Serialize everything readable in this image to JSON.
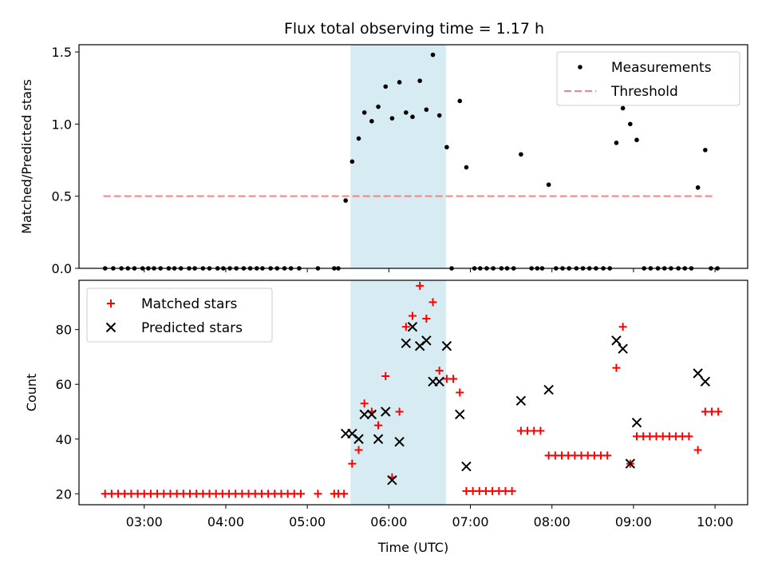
{
  "title": "Flux total observing time = 1.17 h",
  "colors": {
    "measurement": "#000000",
    "threshold": "#ff7f7f",
    "matched": "#ff0000",
    "predicted": "#000000",
    "highlight": "#add8e6"
  },
  "chart_data": [
    {
      "type": "scatter",
      "panel": "top",
      "title": "Flux total observing time = 1.17 h",
      "xlabel": "",
      "ylabel": "Matched/Predicted stars",
      "x_unit": "hours UTC",
      "xlim": [
        2.2,
        10.4
      ],
      "ylim": [
        0,
        1.55
      ],
      "yticks": [
        0.0,
        0.5,
        1.0,
        1.5
      ],
      "ytick_labels": [
        "0.0",
        "0.5",
        "1.0",
        "1.5"
      ],
      "highlight_span": [
        5.53,
        6.7
      ],
      "legend": {
        "position": "upper right",
        "entries": [
          "Measurements",
          "Threshold"
        ]
      },
      "series": [
        {
          "name": "Measurements",
          "marker": "dot",
          "points": [
            [
              2.52,
              0
            ],
            [
              2.62,
              0
            ],
            [
              2.72,
              0
            ],
            [
              2.8,
              0
            ],
            [
              2.88,
              0
            ],
            [
              2.98,
              0
            ],
            [
              3.05,
              0
            ],
            [
              3.12,
              0
            ],
            [
              3.2,
              0
            ],
            [
              3.3,
              0
            ],
            [
              3.37,
              0
            ],
            [
              3.45,
              0
            ],
            [
              3.55,
              0
            ],
            [
              3.62,
              0
            ],
            [
              3.72,
              0
            ],
            [
              3.8,
              0
            ],
            [
              3.9,
              0
            ],
            [
              3.97,
              0
            ],
            [
              4.05,
              0
            ],
            [
              4.13,
              0
            ],
            [
              4.22,
              0
            ],
            [
              4.3,
              0
            ],
            [
              4.38,
              0
            ],
            [
              4.45,
              0
            ],
            [
              4.55,
              0
            ],
            [
              4.63,
              0
            ],
            [
              4.72,
              0
            ],
            [
              4.8,
              0
            ],
            [
              4.9,
              0
            ],
            [
              5.13,
              0
            ],
            [
              5.33,
              0
            ],
            [
              5.38,
              0
            ],
            [
              5.47,
              0.47
            ],
            [
              5.55,
              0.74
            ],
            [
              5.63,
              0.9
            ],
            [
              5.7,
              1.08
            ],
            [
              5.79,
              1.02
            ],
            [
              5.87,
              1.12
            ],
            [
              5.96,
              1.26
            ],
            [
              6.04,
              1.04
            ],
            [
              6.13,
              1.29
            ],
            [
              6.21,
              1.08
            ],
            [
              6.29,
              1.05
            ],
            [
              6.38,
              1.3
            ],
            [
              6.46,
              1.1
            ],
            [
              6.54,
              1.48
            ],
            [
              6.62,
              1.06
            ],
            [
              6.71,
              0.84
            ],
            [
              6.77,
              0
            ],
            [
              6.87,
              1.16
            ],
            [
              6.95,
              0.7
            ],
            [
              7.05,
              0
            ],
            [
              7.12,
              0
            ],
            [
              7.2,
              0
            ],
            [
              7.28,
              0
            ],
            [
              7.38,
              0
            ],
            [
              7.45,
              0
            ],
            [
              7.53,
              0
            ],
            [
              7.62,
              0.79
            ],
            [
              7.75,
              0
            ],
            [
              7.82,
              0
            ],
            [
              7.88,
              0
            ],
            [
              7.96,
              0.58
            ],
            [
              8.05,
              0
            ],
            [
              8.13,
              0
            ],
            [
              8.21,
              0
            ],
            [
              8.3,
              0
            ],
            [
              8.38,
              0
            ],
            [
              8.46,
              0
            ],
            [
              8.54,
              0
            ],
            [
              8.63,
              0
            ],
            [
              8.71,
              0
            ],
            [
              8.79,
              0.87
            ],
            [
              8.87,
              1.11
            ],
            [
              8.96,
              1.0
            ],
            [
              9.04,
              0.89
            ],
            [
              9.13,
              0
            ],
            [
              9.21,
              0
            ],
            [
              9.3,
              0
            ],
            [
              9.38,
              0
            ],
            [
              9.46,
              0
            ],
            [
              9.55,
              0
            ],
            [
              9.63,
              0
            ],
            [
              9.71,
              0
            ],
            [
              9.79,
              0.56
            ],
            [
              9.88,
              0.82
            ],
            [
              9.95,
              0
            ],
            [
              10.03,
              0
            ]
          ]
        },
        {
          "name": "Threshold",
          "line": "dashed",
          "points": [
            [
              2.5,
              0.5
            ],
            [
              10.0,
              0.5
            ]
          ]
        }
      ]
    },
    {
      "type": "scatter",
      "panel": "bottom",
      "xlabel": "Time (UTC)",
      "ylabel": "Count",
      "x_unit": "hours UTC",
      "xlim": [
        2.2,
        10.4
      ],
      "ylim": [
        16,
        98
      ],
      "yticks": [
        20,
        40,
        60,
        80
      ],
      "ytick_labels": [
        "20",
        "40",
        "60",
        "80"
      ],
      "xticks": [
        3,
        4,
        5,
        6,
        7,
        8,
        9,
        10
      ],
      "xtick_labels": [
        "03:00",
        "04:00",
        "05:00",
        "06:00",
        "07:00",
        "08:00",
        "09:00",
        "10:00"
      ],
      "highlight_span": [
        5.53,
        6.7
      ],
      "legend": {
        "position": "upper left",
        "entries": [
          "Matched stars",
          "Predicted stars"
        ]
      },
      "series": [
        {
          "name": "Matched stars",
          "marker": "plus",
          "points": [
            [
              2.52,
              20
            ],
            [
              2.6,
              20
            ],
            [
              2.68,
              20
            ],
            [
              2.76,
              20
            ],
            [
              2.84,
              20
            ],
            [
              2.92,
              20
            ],
            [
              3.0,
              20
            ],
            [
              3.08,
              20
            ],
            [
              3.16,
              20
            ],
            [
              3.24,
              20
            ],
            [
              3.32,
              20
            ],
            [
              3.4,
              20
            ],
            [
              3.48,
              20
            ],
            [
              3.56,
              20
            ],
            [
              3.64,
              20
            ],
            [
              3.72,
              20
            ],
            [
              3.8,
              20
            ],
            [
              3.88,
              20
            ],
            [
              3.96,
              20
            ],
            [
              4.04,
              20
            ],
            [
              4.12,
              20
            ],
            [
              4.2,
              20
            ],
            [
              4.28,
              20
            ],
            [
              4.36,
              20
            ],
            [
              4.44,
              20
            ],
            [
              4.52,
              20
            ],
            [
              4.6,
              20
            ],
            [
              4.68,
              20
            ],
            [
              4.76,
              20
            ],
            [
              4.84,
              20
            ],
            [
              4.92,
              20
            ],
            [
              5.13,
              20
            ],
            [
              5.33,
              20
            ],
            [
              5.38,
              20
            ],
            [
              5.45,
              20
            ],
            [
              5.55,
              31
            ],
            [
              5.63,
              36
            ],
            [
              5.7,
              53
            ],
            [
              5.79,
              50
            ],
            [
              5.87,
              45
            ],
            [
              5.96,
              63
            ],
            [
              6.04,
              26
            ],
            [
              6.13,
              50
            ],
            [
              6.21,
              81
            ],
            [
              6.29,
              85
            ],
            [
              6.38,
              96
            ],
            [
              6.46,
              84
            ],
            [
              6.54,
              90
            ],
            [
              6.62,
              65
            ],
            [
              6.71,
              62
            ],
            [
              6.79,
              62
            ],
            [
              6.87,
              57
            ],
            [
              6.95,
              21
            ],
            [
              7.03,
              21
            ],
            [
              7.11,
              21
            ],
            [
              7.19,
              21
            ],
            [
              7.27,
              21
            ],
            [
              7.35,
              21
            ],
            [
              7.43,
              21
            ],
            [
              7.51,
              21
            ],
            [
              7.62,
              43
            ],
            [
              7.7,
              43
            ],
            [
              7.78,
              43
            ],
            [
              7.86,
              43
            ],
            [
              7.96,
              34
            ],
            [
              8.04,
              34
            ],
            [
              8.12,
              34
            ],
            [
              8.2,
              34
            ],
            [
              8.28,
              34
            ],
            [
              8.36,
              34
            ],
            [
              8.44,
              34
            ],
            [
              8.52,
              34
            ],
            [
              8.6,
              34
            ],
            [
              8.68,
              34
            ],
            [
              8.79,
              66
            ],
            [
              8.87,
              81
            ],
            [
              8.96,
              31
            ],
            [
              9.04,
              41
            ],
            [
              9.12,
              41
            ],
            [
              9.2,
              41
            ],
            [
              9.28,
              41
            ],
            [
              9.36,
              41
            ],
            [
              9.44,
              41
            ],
            [
              9.52,
              41
            ],
            [
              9.6,
              41
            ],
            [
              9.68,
              41
            ],
            [
              9.79,
              36
            ],
            [
              9.88,
              50
            ],
            [
              9.96,
              50
            ],
            [
              10.04,
              50
            ]
          ]
        },
        {
          "name": "Predicted stars",
          "marker": "x",
          "points": [
            [
              5.47,
              42
            ],
            [
              5.55,
              42
            ],
            [
              5.63,
              40
            ],
            [
              5.7,
              49
            ],
            [
              5.79,
              49
            ],
            [
              5.87,
              40
            ],
            [
              5.96,
              50
            ],
            [
              6.04,
              25
            ],
            [
              6.13,
              39
            ],
            [
              6.21,
              75
            ],
            [
              6.29,
              81
            ],
            [
              6.38,
              74
            ],
            [
              6.46,
              76
            ],
            [
              6.54,
              61
            ],
            [
              6.62,
              61
            ],
            [
              6.71,
              74
            ],
            [
              6.87,
              49
            ],
            [
              6.95,
              30
            ],
            [
              7.62,
              54
            ],
            [
              7.96,
              58
            ],
            [
              8.79,
              76
            ],
            [
              8.87,
              73
            ],
            [
              8.96,
              31
            ],
            [
              9.04,
              46
            ],
            [
              9.79,
              64
            ],
            [
              9.88,
              61
            ]
          ]
        }
      ]
    }
  ]
}
